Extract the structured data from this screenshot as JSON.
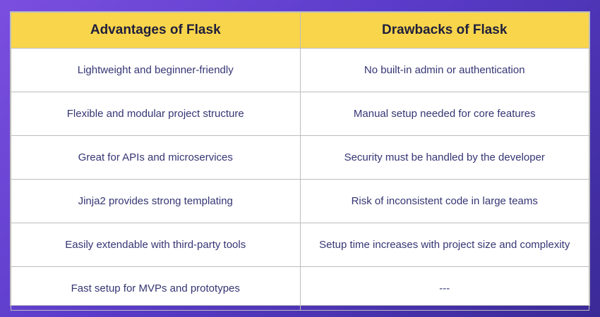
{
  "table": {
    "headers": [
      "Advantages of Flask",
      "Drawbacks of Flask"
    ],
    "rows": [
      [
        "Lightweight and beginner-friendly",
        "No built-in admin or authentication"
      ],
      [
        "Flexible and modular project structure",
        "Manual setup needed for core features"
      ],
      [
        "Great for APIs and microservices",
        "Security must be handled by the developer"
      ],
      [
        "Jinja2 provides strong templating",
        "Risk of inconsistent code in large teams"
      ],
      [
        "Easily extendable with third-party tools",
        "Setup time increases with project size and complexity"
      ],
      [
        "Fast setup for MVPs and prototypes",
        "---"
      ]
    ]
  },
  "colors": {
    "header_bg": "#f9d54b",
    "header_text": "#1f1f3d",
    "cell_text": "#353574",
    "background_gradient": [
      "#7b4fe0",
      "#3a2a96"
    ]
  }
}
